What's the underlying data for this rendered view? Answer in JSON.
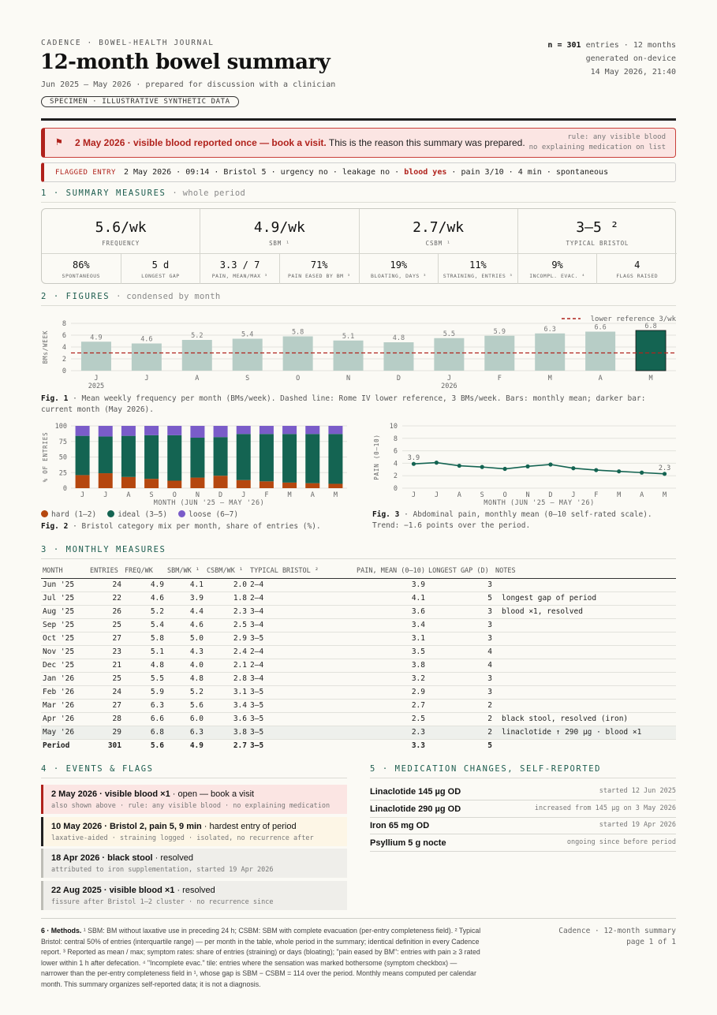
{
  "header": {
    "brand": "CADENCE · BOWEL-HEALTH JOURNAL",
    "title": "12-month bowel summary",
    "subtitle": "Jun 2025 — May 2026 · prepared for discussion with a clinician",
    "specimen": "SPECIMEN · ILLUSTRATIVE SYNTHETIC DATA",
    "n_label": "n = 301",
    "n_rest": "entries · 12 months",
    "generated": "generated on-device",
    "timestamp": "14 May 2026, 21:40"
  },
  "alert": {
    "icon": "flag-icon",
    "bold": "2 May 2026 · visible blood reported once — book a visit.",
    "text": "This is the reason this summary was prepared.",
    "rule1": "rule: any visible blood",
    "rule2": "no explaining medication on list"
  },
  "flagged": {
    "label": "FLAGGED ENTRY",
    "pre": "2 May 2026 · 09:14 · Bristol 5 · urgency no · leakage no ·",
    "blood": "blood yes",
    "post": "· pain 3/10 · 4 min · spontaneous"
  },
  "sections": {
    "s1": "1 · SUMMARY MEASURES",
    "s1_sub": "· whole period",
    "s2": "2 · FIGURES",
    "s2_sub": "· condensed by month",
    "s3": "3 · MONTHLY MEASURES",
    "s4": "4 · EVENTS & FLAGS",
    "s5": "5 · MEDICATION CHANGES, SELF-REPORTED"
  },
  "summary": {
    "big": [
      {
        "value": "5.6/wk",
        "label": "FREQUENCY"
      },
      {
        "value": "4.9/wk",
        "label": "SBM ¹"
      },
      {
        "value": "2.7/wk",
        "label": "CSBM ¹"
      },
      {
        "value": "3–5 ²",
        "label": "TYPICAL BRISTOL"
      }
    ],
    "small": [
      {
        "value": "86%",
        "label": "SPONTANEOUS"
      },
      {
        "value": "5 d",
        "label": "LONGEST GAP"
      },
      {
        "value": "3.3 / 7",
        "label": "PAIN, MEAN/MAX ³"
      },
      {
        "value": "71%",
        "label": "PAIN EASED BY BM ³"
      },
      {
        "value": "19%",
        "label": "BLOATING, DAYS ³"
      },
      {
        "value": "11%",
        "label": "STRAINING, ENTRIES ³"
      },
      {
        "value": "9%",
        "label": "INCOMPL. EVAC. ⁴"
      },
      {
        "value": "4",
        "label": "FLAGS RAISED"
      }
    ]
  },
  "chart_data": [
    {
      "type": "bar",
      "id": "fig1",
      "categories": [
        "J",
        "J",
        "A",
        "S",
        "O",
        "N",
        "D",
        "J",
        "F",
        "M",
        "A",
        "M"
      ],
      "year_labels": [
        "2025",
        "2026"
      ],
      "values": [
        4.9,
        4.6,
        5.2,
        5.4,
        5.8,
        5.1,
        4.8,
        5.5,
        5.9,
        6.3,
        6.6,
        6.8
      ],
      "ylabel": "BMs/WEEK",
      "ylim": [
        0,
        8
      ],
      "yticks": [
        0,
        2,
        4,
        6,
        8
      ],
      "reference": {
        "value": 3,
        "label": "lower reference 3/wk"
      },
      "colors": {
        "bar": "#b7cdc6",
        "current": "#146452",
        "reference": "#b0221c"
      }
    },
    {
      "type": "bar",
      "id": "fig2",
      "stacked": true,
      "categories": [
        "J",
        "J",
        "A",
        "S",
        "O",
        "N",
        "D",
        "J",
        "F",
        "M",
        "A",
        "M"
      ],
      "xlabel": "MONTH (JUN '25 – MAY '26)",
      "ylabel": "% OF ENTRIES",
      "ylim": [
        0,
        100
      ],
      "yticks": [
        0,
        25,
        50,
        75,
        100
      ],
      "series": [
        {
          "name": "hard (1–2)",
          "color": "#b5470f",
          "values": [
            21,
            24,
            18,
            15,
            12,
            17,
            20,
            13,
            11,
            9,
            8,
            7
          ]
        },
        {
          "name": "ideal (3–5)",
          "color": "#146452",
          "values": [
            63,
            59,
            66,
            70,
            73,
            64,
            62,
            74,
            76,
            78,
            79,
            80
          ]
        },
        {
          "name": "loose (6–7)",
          "color": "#7a5cc9",
          "values": [
            16,
            17,
            16,
            15,
            15,
            19,
            18,
            13,
            13,
            13,
            13,
            13
          ]
        }
      ]
    },
    {
      "type": "line",
      "id": "fig3",
      "categories": [
        "J",
        "J",
        "A",
        "S",
        "O",
        "N",
        "D",
        "J",
        "F",
        "M",
        "A",
        "M"
      ],
      "values": [
        3.9,
        4.1,
        3.6,
        3.4,
        3.1,
        3.5,
        3.8,
        3.2,
        2.9,
        2.7,
        2.5,
        2.3
      ],
      "first_label": "3.9",
      "last_label": "2.3",
      "xlabel": "MONTH (JUN '25 – MAY '26)",
      "ylabel": "PAIN (0–10)",
      "ylim": [
        0,
        10
      ],
      "yticks": [
        0,
        2,
        4,
        6,
        8,
        10
      ],
      "color": "#146452"
    }
  ],
  "captions": {
    "fig1_b": "Fig. 1",
    "fig1": "· Mean weekly frequency per month (BMs/week). Dashed line: Rome IV lower reference, 3 BMs/week. Bars: monthly mean; darker bar: current month (May 2026).",
    "fig2_b": "Fig. 2",
    "fig2": "· Bristol category mix per month, share of entries (%).",
    "fig3_b": "Fig. 3",
    "fig3": "· Abdominal pain, monthly mean (0–10 self-rated scale). Trend: −1.6 points over the period."
  },
  "table": {
    "headers": [
      "MONTH",
      "ENTRIES",
      "FREQ/WK",
      "SBM/WK ¹",
      "CSBM/WK ¹",
      "TYPICAL BRISTOL ²",
      "PAIN, MEAN (0–10)",
      "LONGEST GAP (D)",
      "NOTES"
    ],
    "rows": [
      [
        "Jun '25",
        "24",
        "4.9",
        "4.1",
        "2.0",
        "2–4",
        "3.9",
        "3",
        ""
      ],
      [
        "Jul '25",
        "22",
        "4.6",
        "3.9",
        "1.8",
        "2–4",
        "4.1",
        "5",
        "longest gap of period"
      ],
      [
        "Aug '25",
        "26",
        "5.2",
        "4.4",
        "2.3",
        "3–4",
        "3.6",
        "3",
        "blood ×1, resolved"
      ],
      [
        "Sep '25",
        "25",
        "5.4",
        "4.6",
        "2.5",
        "3–4",
        "3.4",
        "3",
        ""
      ],
      [
        "Oct '25",
        "27",
        "5.8",
        "5.0",
        "2.9",
        "3–5",
        "3.1",
        "3",
        ""
      ],
      [
        "Nov '25",
        "23",
        "5.1",
        "4.3",
        "2.4",
        "2–4",
        "3.5",
        "4",
        ""
      ],
      [
        "Dec '25",
        "21",
        "4.8",
        "4.0",
        "2.1",
        "2–4",
        "3.8",
        "4",
        ""
      ],
      [
        "Jan '26",
        "25",
        "5.5",
        "4.8",
        "2.8",
        "3–4",
        "3.2",
        "3",
        ""
      ],
      [
        "Feb '26",
        "24",
        "5.9",
        "5.2",
        "3.1",
        "3–5",
        "2.9",
        "3",
        ""
      ],
      [
        "Mar '26",
        "27",
        "6.3",
        "5.6",
        "3.4",
        "3–5",
        "2.7",
        "2",
        ""
      ],
      [
        "Apr '26",
        "28",
        "6.6",
        "6.0",
        "3.6",
        "3–5",
        "2.5",
        "2",
        "black stool, resolved (iron)"
      ],
      [
        "May '26",
        "29",
        "6.8",
        "6.3",
        "3.8",
        "3–5",
        "2.3",
        "2",
        "linaclotide ↑ 290 µg · blood ×1"
      ]
    ],
    "total": [
      "Period",
      "301",
      "5.6",
      "4.9",
      "2.7",
      "3–5",
      "3.3",
      "5",
      ""
    ]
  },
  "events": [
    {
      "title": "2 May 2026 · visible blood ×1",
      "rest": " · open — book a visit",
      "sub": "also shown above · rule: any visible blood · no explaining medication",
      "bg": "#fbe5e3",
      "bar": "#b0221c"
    },
    {
      "title": "10 May 2026 · Bristol 2, pain 5, 9 min",
      "rest": " · hardest entry of period",
      "sub": "laxative-aided · straining logged · isolated, no recurrence after",
      "bg": "#fdf6e6",
      "bar": "#222222"
    },
    {
      "title": "18 Apr 2026 · black stool",
      "rest": " · resolved",
      "sub": "attributed to iron supplementation, started 19 Apr 2026",
      "bg": "#efeeea",
      "bar": "#bdbdb6"
    },
    {
      "title": "22 Aug 2025 · visible blood ×1",
      "rest": " · resolved",
      "sub": "fissure after Bristol 1–2 cluster · no recurrence since",
      "bg": "#efeeea",
      "bar": "#bdbdb6"
    }
  ],
  "medications": [
    {
      "name": "Linaclotide 145 µg OD",
      "detail": "started 12 Jun 2025"
    },
    {
      "name": "Linaclotide 290 µg OD",
      "detail": "increased from 145 µg on 3 May 2026"
    },
    {
      "name": "Iron 65 mg OD",
      "detail": "started 19 Apr 2026"
    },
    {
      "name": "Psyllium 5 g nocte",
      "detail": "ongoing since before period"
    }
  ],
  "footer": {
    "methods_b": "6 · Methods.",
    "methods": " ¹ SBM: BM without laxative use in preceding 24 h; CSBM: SBM with complete evacuation (per-entry completeness field). ² Typical Bristol: central 50% of entries (interquartile range) — per month in the table, whole period in the summary; identical definition in every Cadence report. ³ Reported as mean / max; symptom rates: share of entries (straining) or days (bloating); \"pain eased by BM\": entries with pain ≥ 3 rated lower within 1 h after defecation. ⁴ \"Incomplete evac.\" tile: entries where the sensation was marked bothersome (symptom checkbox) — narrower than the per-entry completeness field in ¹, whose gap is SBM − CSBM = 114 over the period. Monthly means computed per calendar month. This summary organizes self-reported data; it is not a diagnosis.",
    "right1": "Cadence · 12-month summary",
    "right2": "page 1 of 1"
  }
}
